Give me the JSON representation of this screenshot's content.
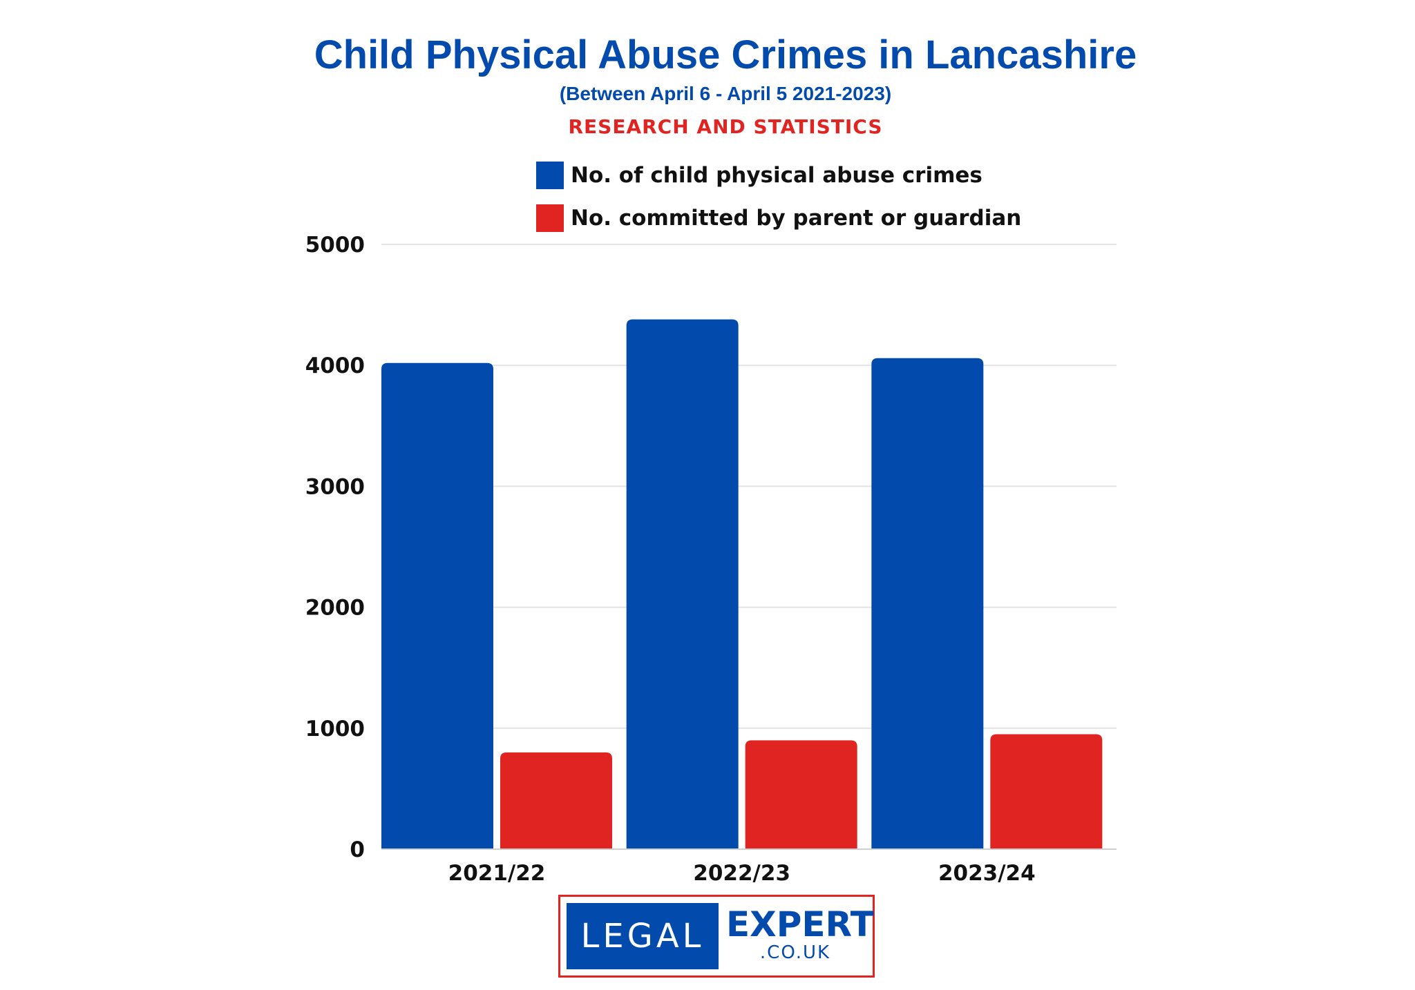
{
  "chart_data": {
    "type": "bar",
    "title": "Child Physical Abuse Crimes in Lancashire",
    "subtitle": "(Between April 6 - April 5 2021-2023)",
    "tagline": "RESEARCH AND STATISTICS",
    "categories": [
      "2021/22",
      "2022/23",
      "2023/24"
    ],
    "series": [
      {
        "name": "No. of child physical abuse crimes",
        "values": [
          4020,
          4380,
          4060
        ],
        "color": "#034aad"
      },
      {
        "name": "No. committed by parent or guardian",
        "values": [
          800,
          900,
          950
        ],
        "color": "#e02421"
      }
    ],
    "ylim": [
      0,
      5000
    ],
    "yticks": [
      "0",
      "1000",
      "2000",
      "3000",
      "4000",
      "5000"
    ],
    "xlabel": "",
    "ylabel": "",
    "grid": true,
    "legend": "top-center"
  },
  "logo": {
    "left_text": "LEGAL",
    "right_text": "EXPERT",
    "sub_text": ".CO.UK"
  }
}
